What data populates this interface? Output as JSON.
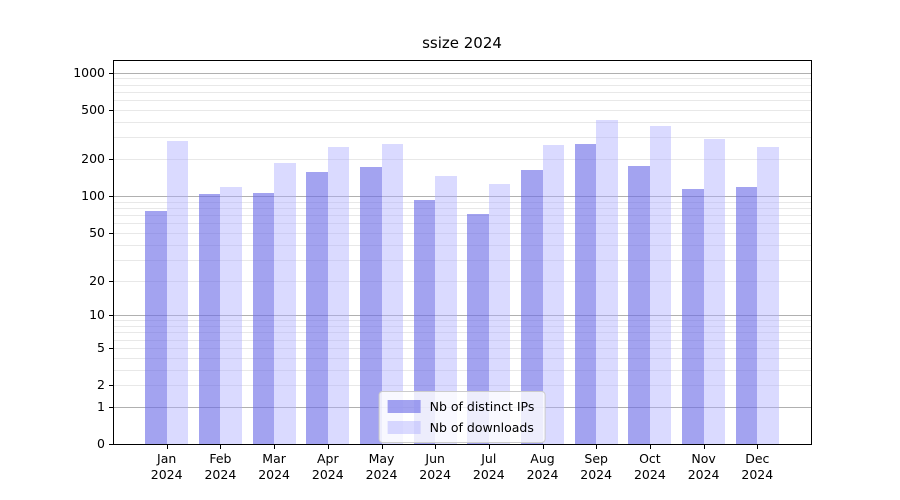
{
  "chart_data": {
    "type": "bar",
    "title": "ssize 2024",
    "categories": [
      "Jan",
      "Feb",
      "Mar",
      "Apr",
      "May",
      "Jun",
      "Jul",
      "Aug",
      "Sep",
      "Oct",
      "Nov",
      "Dec"
    ],
    "category_year": "2024",
    "series": [
      {
        "id": "distinct-ips",
        "name": "Nb of distinct IPs",
        "color": "#6b6be6",
        "alpha": 0.62,
        "values": [
          75,
          103,
          106,
          157,
          172,
          92,
          71,
          163,
          263,
          174,
          113,
          119
        ]
      },
      {
        "id": "downloads",
        "name": "Nb of downloads",
        "color": "#adadff",
        "alpha": 0.45,
        "values": [
          280,
          119,
          186,
          251,
          265,
          145,
          125,
          260,
          410,
          370,
          290,
          250
        ]
      }
    ],
    "y_scale": "log1p",
    "y_ticks": [
      1000,
      500,
      200,
      100,
      50,
      20,
      10,
      5,
      2,
      1,
      0
    ],
    "y_major_gridlines": [
      1,
      10,
      100,
      1000
    ],
    "ylim": [
      0,
      1264
    ],
    "xlabel": "",
    "ylabel": "",
    "grid": true,
    "legend_position": "lower center"
  },
  "colors": {
    "major_grid": "#b0b0b0",
    "minor_grid": "#e8e8e8",
    "axis": "#000000",
    "legend_border": "#cccccc",
    "legend_background": "rgba(255,255,255,0.8)"
  }
}
